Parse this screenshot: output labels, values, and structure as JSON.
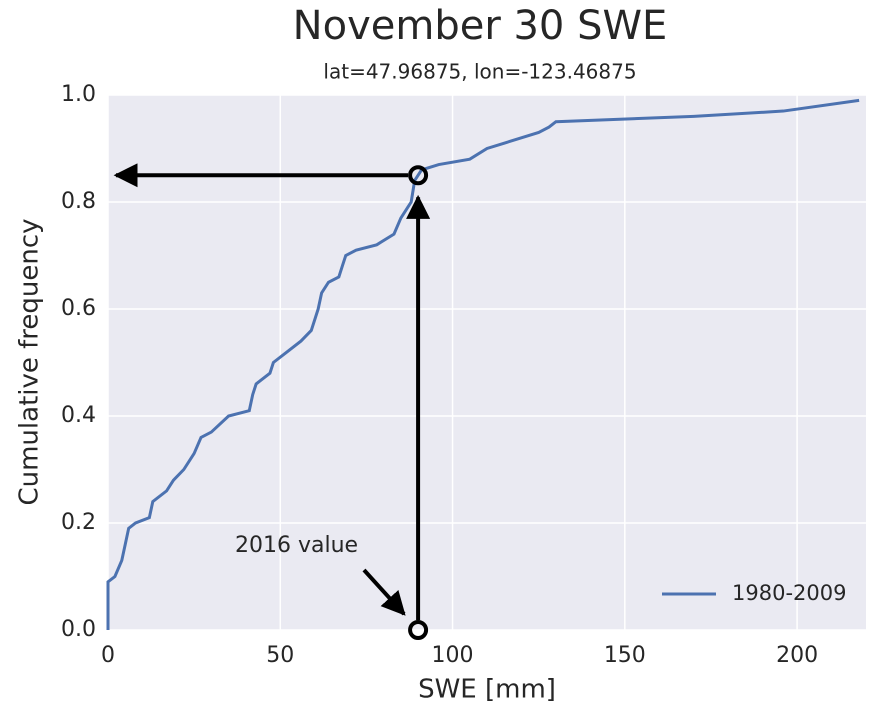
{
  "chart_data": {
    "type": "line",
    "title": "November 30 SWE",
    "subtitle": "lat=47.96875, lon=-123.46875",
    "xlabel": "SWE [mm]",
    "ylabel": "Cumulative frequency",
    "xlim": [
      0,
      220
    ],
    "ylim": [
      0,
      1
    ],
    "xticks": [
      0,
      50,
      100,
      150,
      200
    ],
    "yticks": [
      {
        "value": 0,
        "label": "0.0"
      },
      {
        "value": 0.2,
        "label": "0.2"
      },
      {
        "value": 0.4,
        "label": "0.4"
      },
      {
        "value": 0.6,
        "label": "0.6"
      },
      {
        "value": 0.8,
        "label": "0.8"
      },
      {
        "value": 1,
        "label": "1.0"
      }
    ],
    "grid": true,
    "legend": "lower right",
    "series": [
      {
        "name": "1980-2009",
        "color": "#4c72b0",
        "x": [
          0,
          0,
          2,
          4,
          5,
          6,
          8,
          12,
          13,
          17,
          19,
          22,
          25,
          27,
          30,
          35,
          41,
          42,
          43,
          47,
          48,
          52,
          56,
          59,
          61,
          62,
          64,
          67,
          68,
          69,
          72,
          78,
          83,
          85,
          87,
          88,
          89,
          91,
          96,
          105,
          110,
          115,
          125,
          128,
          130,
          170,
          196,
          218
        ],
        "values": [
          0,
          0.09,
          0.1,
          0.13,
          0.16,
          0.19,
          0.2,
          0.21,
          0.24,
          0.26,
          0.28,
          0.3,
          0.33,
          0.36,
          0.37,
          0.4,
          0.41,
          0.44,
          0.46,
          0.48,
          0.5,
          0.52,
          0.54,
          0.56,
          0.6,
          0.63,
          0.65,
          0.66,
          0.68,
          0.7,
          0.71,
          0.72,
          0.74,
          0.77,
          0.79,
          0.8,
          0.84,
          0.86,
          0.87,
          0.88,
          0.9,
          0.91,
          0.93,
          0.94,
          0.95,
          0.96,
          0.97,
          0.99
        ]
      }
    ],
    "annotation": "2016 value",
    "highlight": {
      "x": 90,
      "y": 0.85
    }
  }
}
